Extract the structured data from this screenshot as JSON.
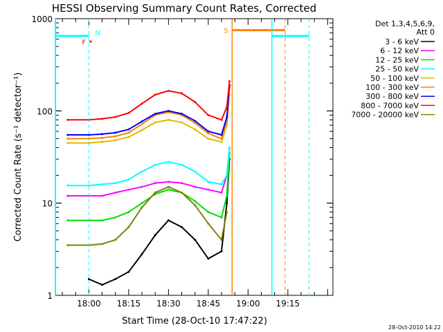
{
  "chart_data": {
    "type": "line",
    "title": "HESSI Observing Summary Count Rates, Corrected",
    "xlabel": "Start Time (28-Oct-10 17:47:22)",
    "ylabel": "Corrected Count Rate (s⁻¹ detector⁻¹)",
    "x_scale": "time",
    "y_scale": "log",
    "xlim": [
      "17:47:22",
      "19:32:00"
    ],
    "ylim": [
      1,
      1000
    ],
    "x_ticks": [
      "18:00",
      "18:15",
      "18:30",
      "18:45",
      "19:00",
      "19:15"
    ],
    "y_ticks": [
      "1",
      "10",
      "100",
      "1000"
    ],
    "legend_header": [
      "Det 1,3,4,5,6,9,",
      "Att 0"
    ],
    "legend_position": "right, outside plot",
    "footer_date": "28-Oct-2010 14:22",
    "series": [
      {
        "name": "3 - 6 keV",
        "color": "#000000",
        "x": [
          "17:52",
          "18:00",
          "18:05",
          "18:10",
          "18:15",
          "18:20",
          "18:25",
          "18:30",
          "18:35",
          "18:40",
          "18:45",
          "18:50",
          "18:52",
          "18:53"
        ],
        "y": [
          null,
          1.5,
          1.3,
          1.5,
          1.8,
          2.8,
          4.5,
          6.5,
          5.5,
          4.0,
          2.5,
          3.0,
          10,
          30
        ]
      },
      {
        "name": "6 - 12 keV",
        "color": "#ff00ff",
        "x": [
          "17:52",
          "18:00",
          "18:05",
          "18:10",
          "18:15",
          "18:20",
          "18:25",
          "18:30",
          "18:35",
          "18:40",
          "18:45",
          "18:50",
          "18:52",
          "18:53"
        ],
        "y": [
          12,
          12,
          12,
          13,
          14,
          15,
          16.5,
          17,
          16.5,
          15,
          14,
          13,
          20,
          40
        ]
      },
      {
        "name": "12 - 25 keV",
        "color": "#00dd00",
        "x": [
          "17:52",
          "18:00",
          "18:05",
          "18:10",
          "18:15",
          "18:20",
          "18:25",
          "18:30",
          "18:35",
          "18:40",
          "18:45",
          "18:50",
          "18:52",
          "18:53"
        ],
        "y": [
          6.5,
          6.5,
          6.5,
          7.0,
          8.0,
          10,
          12.5,
          14,
          13,
          10.5,
          8.0,
          7.0,
          12,
          35
        ]
      },
      {
        "name": "25 - 50 keV",
        "color": "#00ffff",
        "x": [
          "17:52",
          "18:00",
          "18:05",
          "18:10",
          "18:15",
          "18:20",
          "18:25",
          "18:30",
          "18:35",
          "18:40",
          "18:45",
          "18:50",
          "18:52",
          "18:53"
        ],
        "y": [
          15.5,
          15.5,
          16,
          16.5,
          18,
          22,
          26,
          28,
          26,
          22,
          17,
          16,
          20,
          40
        ]
      },
      {
        "name": "50 - 100 keV",
        "color": "#ddbb00",
        "x": [
          "17:52",
          "18:00",
          "18:05",
          "18:10",
          "18:15",
          "18:20",
          "18:25",
          "18:30",
          "18:35",
          "18:40",
          "18:45",
          "18:50",
          "18:52",
          "18:53"
        ],
        "y": [
          45,
          45,
          46,
          48,
          52,
          62,
          75,
          80,
          75,
          63,
          50,
          46,
          70,
          150
        ]
      },
      {
        "name": "100 - 300 keV",
        "color": "#ff8000",
        "x": [
          "17:52",
          "18:00",
          "18:05",
          "18:10",
          "18:15",
          "18:20",
          "18:25",
          "18:30",
          "18:35",
          "18:40",
          "18:45",
          "18:50",
          "18:52",
          "18:53"
        ],
        "y": [
          50,
          50,
          51,
          53,
          58,
          72,
          90,
          97,
          90,
          74,
          57,
          50,
          80,
          180
        ]
      },
      {
        "name": "300 - 800 keV",
        "color": "#0000ff",
        "x": [
          "17:52",
          "18:00",
          "18:05",
          "18:10",
          "18:15",
          "18:20",
          "18:25",
          "18:30",
          "18:35",
          "18:40",
          "18:45",
          "18:50",
          "18:52",
          "18:53"
        ],
        "y": [
          55,
          55,
          56,
          58,
          63,
          77,
          93,
          100,
          93,
          78,
          60,
          55,
          85,
          190
        ]
      },
      {
        "name": "800 - 7000 keV",
        "color": "#ff0000",
        "x": [
          "17:52",
          "18:00",
          "18:05",
          "18:10",
          "18:15",
          "18:20",
          "18:25",
          "18:30",
          "18:35",
          "18:40",
          "18:45",
          "18:50",
          "18:52",
          "18:53"
        ],
        "y": [
          80,
          80,
          82,
          86,
          95,
          120,
          150,
          165,
          155,
          125,
          90,
          80,
          110,
          210
        ]
      },
      {
        "name": "7000 - 20000 keV",
        "color": "#808000",
        "x": [
          "17:52",
          "18:00",
          "18:05",
          "18:10",
          "18:15",
          "18:20",
          "18:25",
          "18:30",
          "18:35",
          "18:40",
          "18:45",
          "18:50",
          "18:52"
        ],
        "y": [
          3.5,
          3.5,
          3.6,
          4.0,
          5.5,
          9.0,
          13,
          15,
          13,
          9.5,
          6.0,
          4.0,
          8.0
        ]
      }
    ],
    "flags": [
      {
        "label": "N",
        "color": "#00ffff"
      },
      {
        "label": "F",
        "color": "#ff0000"
      },
      {
        "label": "S",
        "color": "#ff8000"
      }
    ]
  }
}
